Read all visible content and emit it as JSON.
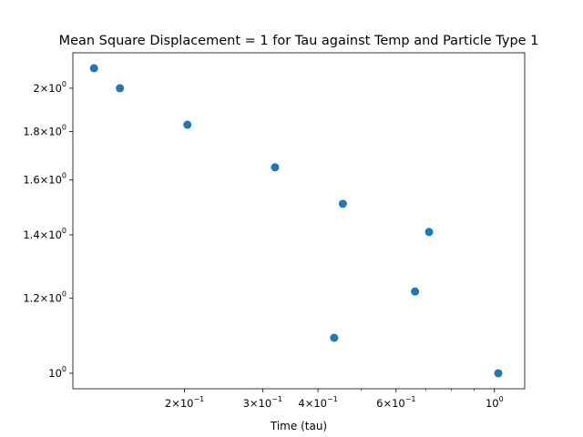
{
  "chart_data": {
    "type": "scatter",
    "title": "Mean Square Displacement = 1 for Tau against Temp and Particle Type 1",
    "xlabel": "Time (tau)",
    "ylabel": "",
    "xscale": "log",
    "yscale": "log",
    "xlim": [
      0.112,
      1.17
    ],
    "ylim": [
      0.963,
      2.18
    ],
    "grid": false,
    "marker_color": "#1f77b4",
    "x_ticks": [
      {
        "value": 0.2,
        "base": "2",
        "exp": "−1"
      },
      {
        "value": 0.3,
        "base": "3",
        "exp": "−1"
      },
      {
        "value": 0.4,
        "base": "4",
        "exp": "−1"
      },
      {
        "value": 0.6,
        "base": "6",
        "exp": "−1"
      },
      {
        "value": 1.0,
        "base": "",
        "exp": "0"
      }
    ],
    "y_ticks": [
      {
        "value": 1.0,
        "base": "",
        "exp": "0"
      },
      {
        "value": 1.2,
        "base": "1.2",
        "exp": "0"
      },
      {
        "value": 1.4,
        "base": "1.4",
        "exp": "0"
      },
      {
        "value": 1.6,
        "base": "1.6",
        "exp": "0"
      },
      {
        "value": 1.8,
        "base": "1.8",
        "exp": "0"
      },
      {
        "value": 2.0,
        "base": "2",
        "exp": "0"
      }
    ],
    "x": [
      0.125,
      0.143,
      0.203,
      0.32,
      0.455,
      0.435,
      0.712,
      0.662,
      1.02
    ],
    "y": [
      2.1,
      2.0,
      1.83,
      1.65,
      1.51,
      1.09,
      1.41,
      1.22,
      1.0
    ]
  }
}
